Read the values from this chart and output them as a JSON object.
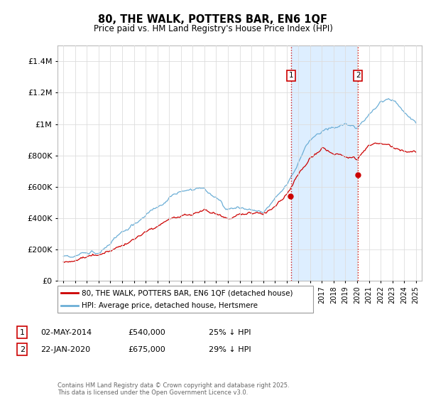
{
  "title": "80, THE WALK, POTTERS BAR, EN6 1QF",
  "subtitle": "Price paid vs. HM Land Registry's House Price Index (HPI)",
  "legend_line1": "80, THE WALK, POTTERS BAR, EN6 1QF (detached house)",
  "legend_line2": "HPI: Average price, detached house, Hertsmere",
  "annotation1_date": "02-MAY-2014",
  "annotation1_price": "£540,000",
  "annotation1_hpi": "25% ↓ HPI",
  "annotation1_year": 2014.37,
  "annotation1_value": 540000,
  "annotation2_date": "22-JAN-2020",
  "annotation2_price": "£675,000",
  "annotation2_hpi": "29% ↓ HPI",
  "annotation2_year": 2020.07,
  "annotation2_value": 675000,
  "footer": "Contains HM Land Registry data © Crown copyright and database right 2025.\nThis data is licensed under the Open Government Licence v3.0.",
  "hpi_color": "#6baed6",
  "price_color": "#cc0000",
  "vline_color": "#cc0000",
  "highlight_color": "#ddeeff",
  "ylim": [
    0,
    1500000
  ],
  "yticks": [
    0,
    200000,
    400000,
    600000,
    800000,
    1000000,
    1200000,
    1400000
  ],
  "xlim": [
    1994.5,
    2025.5
  ],
  "background_color": "#ffffff",
  "plot_bg_color": "#ffffff",
  "grid_color": "#dddddd"
}
